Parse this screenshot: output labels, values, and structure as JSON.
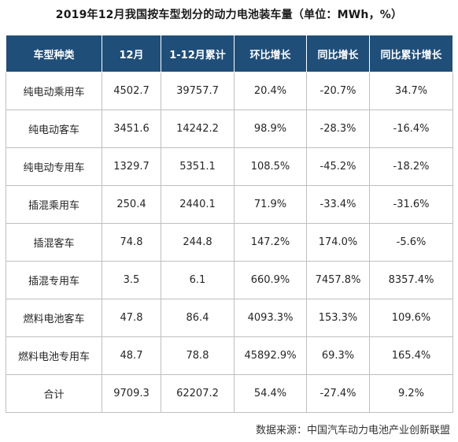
{
  "title": "2019年12月我国按车型划分的动力电池装车量（单位：MWh，%）",
  "headers": [
    "车型种类",
    "12月",
    "1-12月累计",
    "环比增长",
    "同比增长",
    "同比累计增长"
  ],
  "rows": [
    [
      "纯电动乘用车",
      "4502.7",
      "39757.7",
      "20.4%",
      "-20.7%",
      "34.7%"
    ],
    [
      "纯电动客车",
      "3451.6",
      "14242.2",
      "98.9%",
      "-28.3%",
      "-16.4%"
    ],
    [
      "纯电动专用车",
      "1329.7",
      "5351.1",
      "108.5%",
      "-45.2%",
      "-18.2%"
    ],
    [
      "插混乘用车",
      "250.4",
      "2440.1",
      "71.9%",
      "-33.4%",
      "-31.6%"
    ],
    [
      "插混客车",
      "74.8",
      "244.8",
      "147.2%",
      "174.0%",
      "-5.6%"
    ],
    [
      "插混专用车",
      "3.5",
      "6.1",
      "660.9%",
      "7457.8%",
      "8357.4%"
    ],
    [
      "燃料电池客车",
      "47.8",
      "86.4",
      "4093.3%",
      "153.3%",
      "109.6%"
    ],
    [
      "燃料电池专用车",
      "48.7",
      "78.8",
      "45892.9%",
      "69.3%",
      "165.4%"
    ],
    [
      "合计",
      "9709.3",
      "62207.2",
      "54.4%",
      "-27.4%",
      "9.2%"
    ]
  ],
  "source": "数据来源：中国汽车动力电池产业创新联盟",
  "colors": {
    "header_bg": "#1f4e79",
    "header_text": "#ffffff",
    "border": "#bfbfbf"
  }
}
